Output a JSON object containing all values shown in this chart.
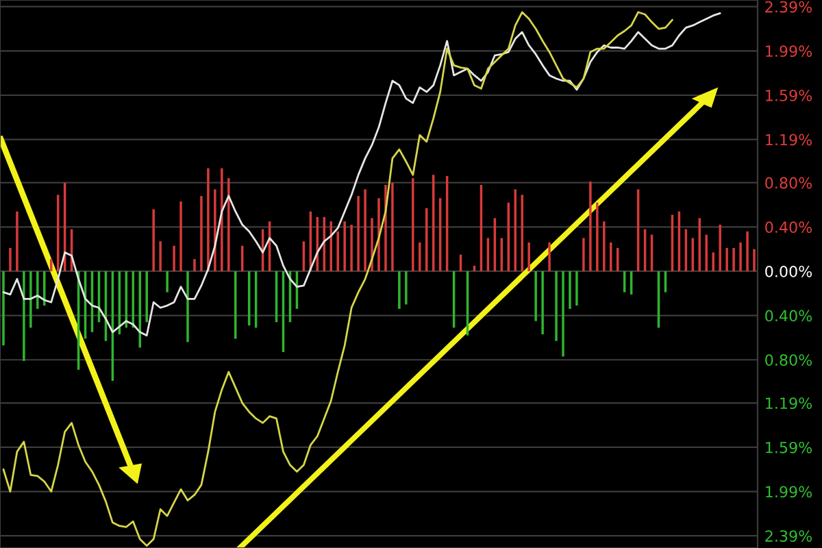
{
  "chart_data": {
    "type": "bar",
    "categories": [
      null,
      null,
      null,
      null,
      null,
      null,
      null,
      null,
      null,
      null,
      null,
      null,
      null,
      null,
      null,
      null,
      null,
      null,
      null,
      null,
      null,
      null,
      null,
      null,
      null,
      null,
      null,
      null,
      null,
      null,
      null,
      null,
      null,
      null,
      null,
      null,
      null,
      null,
      null,
      null,
      null,
      null,
      null,
      null,
      null,
      null,
      null,
      null,
      null,
      null,
      null,
      null,
      null,
      null,
      null,
      null,
      null,
      null,
      null,
      null,
      null,
      null,
      null,
      null,
      null,
      null,
      null,
      null,
      null,
      null,
      null,
      null,
      null,
      null,
      null,
      null,
      null,
      null,
      null,
      null,
      null,
      null,
      null,
      null,
      null,
      null,
      null,
      null,
      null,
      null,
      null,
      null,
      null,
      null,
      null,
      null,
      null,
      null,
      null,
      null,
      null,
      null,
      null,
      null,
      null,
      null,
      null,
      null,
      null,
      null,
      null
    ],
    "series": [
      {
        "values": [
          -0.67,
          0.21,
          0.54,
          -0.81,
          -0.51,
          -0.34,
          -0.31,
          0.11,
          0.69,
          0.8,
          0.38,
          -0.89,
          -0.61,
          -0.55,
          -0.46,
          -0.63,
          -0.99,
          -0.57,
          -0.51,
          -0.51,
          -0.69,
          -0.46,
          0.56,
          0.27,
          -0.19,
          0.23,
          0.63,
          -0.64,
          0.11,
          0.68,
          0.93,
          0.74,
          0.93,
          0.84,
          -0.61,
          0.23,
          -0.49,
          -0.51,
          0.38,
          0.45,
          -0.46,
          -0.73,
          -0.46,
          -0.34,
          0.27,
          0.54,
          0.49,
          0.49,
          0.45,
          0.36,
          0.45,
          0.42,
          0.68,
          0.74,
          0.48,
          0.66,
          0.78,
          0.8,
          -0.34,
          -0.3,
          0.84,
          0.26,
          0.57,
          0.87,
          0.66,
          0.86,
          -0.51,
          0.15,
          -0.58,
          0.05,
          0.78,
          0.3,
          0.48,
          0.3,
          0.62,
          0.74,
          0.69,
          0.26,
          -0.45,
          -0.57,
          0.26,
          -0.63,
          -0.77,
          -0.34,
          -0.31,
          0.3,
          0.81,
          0.62,
          0.45,
          0.26,
          0.21,
          -0.19,
          -0.21,
          0.74,
          0.38,
          0.33,
          -0.51,
          -0.19,
          0.51,
          0.54,
          0.38,
          0.3,
          0.48,
          0.33,
          0.17,
          0.42,
          0.21,
          0.21,
          0.26,
          0.36,
          0.2
        ],
        "colors": [
          "#2fb52f",
          "#d83a3a",
          "#d83a3a",
          "#2fb52f",
          "#2fb52f",
          "#2fb52f",
          "#2fb52f",
          "#d83a3a",
          "#d83a3a",
          "#d83a3a",
          "#d83a3a",
          "#2fb52f",
          "#2fb52f",
          "#2fb52f",
          "#2fb52f",
          "#2fb52f",
          "#2fb52f",
          "#2fb52f",
          "#2fb52f",
          "#2fb52f",
          "#2fb52f",
          "#2fb52f",
          "#d83a3a",
          "#d83a3a",
          "#2fb52f",
          "#d83a3a",
          "#d83a3a",
          "#2fb52f",
          "#d83a3a",
          "#d83a3a",
          "#d83a3a",
          "#d83a3a",
          "#d83a3a",
          "#d83a3a",
          "#2fb52f",
          "#d83a3a",
          "#2fb52f",
          "#2fb52f",
          "#d83a3a",
          "#d83a3a",
          "#2fb52f",
          "#2fb52f",
          "#2fb52f",
          "#2fb52f",
          "#d83a3a",
          "#d83a3a",
          "#d83a3a",
          "#d83a3a",
          "#d83a3a",
          "#d83a3a",
          "#d83a3a",
          "#d83a3a",
          "#d83a3a",
          "#d83a3a",
          "#d83a3a",
          "#d83a3a",
          "#d83a3a",
          "#d83a3a",
          "#2fb52f",
          "#2fb52f",
          "#d83a3a",
          "#d83a3a",
          "#d83a3a",
          "#d83a3a",
          "#d83a3a",
          "#d83a3a",
          "#2fb52f",
          "#d83a3a",
          "#2fb52f",
          "#d83a3a",
          "#d83a3a",
          "#d83a3a",
          "#d83a3a",
          "#d83a3a",
          "#d83a3a",
          "#d83a3a",
          "#d83a3a",
          "#d83a3a",
          "#2fb52f",
          "#2fb52f",
          "#d83a3a",
          "#2fb52f",
          "#2fb52f",
          "#2fb52f",
          "#2fb52f",
          "#d83a3a",
          "#d83a3a",
          "#d83a3a",
          "#d83a3a",
          "#d83a3a",
          "#d83a3a",
          "#2fb52f",
          "#2fb52f",
          "#d83a3a",
          "#d83a3a",
          "#d83a3a",
          "#2fb52f",
          "#2fb52f",
          "#d83a3a",
          "#d83a3a",
          "#d83a3a",
          "#d83a3a",
          "#d83a3a",
          "#d83a3a",
          "#d83a3a",
          "#d83a3a",
          "#d83a3a",
          "#d83a3a",
          "#d83a3a",
          "#d83a3a",
          "#d83a3a"
        ]
      },
      {
        "type": "line",
        "color": "#e6e6e6",
        "values": [
          -0.19,
          -0.21,
          -0.07,
          -0.25,
          -0.25,
          -0.22,
          -0.26,
          -0.28,
          -0.07,
          0.17,
          0.14,
          -0.07,
          -0.25,
          -0.31,
          -0.33,
          -0.43,
          -0.55,
          -0.5,
          -0.45,
          -0.48,
          -0.55,
          -0.58,
          -0.28,
          -0.33,
          -0.31,
          -0.28,
          -0.14,
          -0.25,
          -0.25,
          -0.13,
          0.02,
          0.23,
          0.54,
          0.68,
          0.54,
          0.42,
          0.36,
          0.27,
          0.17,
          0.3,
          0.23,
          0.05,
          -0.07,
          -0.14,
          -0.13,
          0.02,
          0.17,
          0.27,
          0.32,
          0.39,
          0.54,
          0.69,
          0.87,
          1.02,
          1.14,
          1.3,
          1.52,
          1.72,
          1.68,
          1.56,
          1.52,
          1.66,
          1.62,
          1.68,
          1.86,
          2.08,
          1.77,
          1.8,
          1.83,
          1.77,
          1.72,
          1.8,
          1.95,
          1.96,
          1.98,
          2.1,
          2.16,
          2.04,
          1.96,
          1.86,
          1.77,
          1.74,
          1.72,
          1.72,
          1.64,
          1.74,
          1.89,
          1.98,
          2.04,
          2.02,
          2.02,
          2.01,
          2.08,
          2.16,
          2.1,
          2.04,
          2.01,
          2.01,
          2.04,
          2.13,
          2.2,
          2.22,
          2.25,
          2.28,
          2.31,
          2.33,
          null,
          null,
          null,
          null,
          null
        ]
      },
      {
        "type": "line",
        "color": "#d6d64a",
        "values": [
          -1.79,
          -1.99,
          -1.63,
          -1.54,
          -1.84,
          -1.85,
          -1.9,
          -1.99,
          -1.75,
          -1.45,
          -1.37,
          -1.57,
          -1.72,
          -1.81,
          -1.93,
          -2.08,
          -2.27,
          -2.3,
          -2.31,
          -2.26,
          -2.42,
          -2.48,
          -2.42,
          -2.15,
          -2.21,
          -2.09,
          -1.97,
          -2.07,
          -2.02,
          -1.93,
          -1.63,
          -1.27,
          -1.07,
          -0.91,
          -1.05,
          -1.19,
          -1.27,
          -1.33,
          -1.37,
          -1.31,
          -1.33,
          -1.63,
          -1.75,
          -1.81,
          -1.75,
          -1.57,
          -1.49,
          -1.33,
          -1.17,
          -0.91,
          -0.67,
          -0.33,
          -0.19,
          -0.07,
          0.11,
          0.3,
          0.54,
          1.02,
          1.1,
          0.99,
          0.87,
          1.23,
          1.17,
          1.38,
          1.62,
          2.01,
          1.86,
          1.84,
          1.83,
          1.68,
          1.65,
          1.83,
          1.89,
          1.95,
          2.01,
          2.22,
          2.34,
          2.28,
          2.19,
          2.08,
          1.98,
          1.86,
          1.74,
          1.7,
          1.66,
          1.74,
          1.98,
          2.01,
          2.01,
          2.07,
          2.13,
          2.17,
          2.22,
          2.34,
          2.32,
          2.25,
          2.19,
          2.2,
          2.27,
          null,
          null,
          null,
          null,
          null,
          null,
          null,
          null,
          null,
          null,
          null,
          null
        ]
      }
    ],
    "ylim": [
      -2.5,
      2.45
    ],
    "yticks": [
      {
        "value": 2.39,
        "label": "2.39%"
      },
      {
        "value": 1.99,
        "label": "1.99%"
      },
      {
        "value": 1.59,
        "label": "1.59%"
      },
      {
        "value": 1.19,
        "label": "1.19%"
      },
      {
        "value": 0.8,
        "label": "0.80%"
      },
      {
        "value": 0.4,
        "label": "0.40%"
      },
      {
        "value": 0,
        "label": "0.00%"
      },
      {
        "value": -0.4,
        "label": "0.40%"
      },
      {
        "value": -0.8,
        "label": "0.80%"
      },
      {
        "value": -1.19,
        "label": "1.19%"
      },
      {
        "value": -1.59,
        "label": "1.59%"
      },
      {
        "value": -1.99,
        "label": "1.99%"
      },
      {
        "value": -2.39,
        "label": "2.39%"
      }
    ],
    "grid": "y",
    "tick_labels": "y",
    "legend": false
  }
}
